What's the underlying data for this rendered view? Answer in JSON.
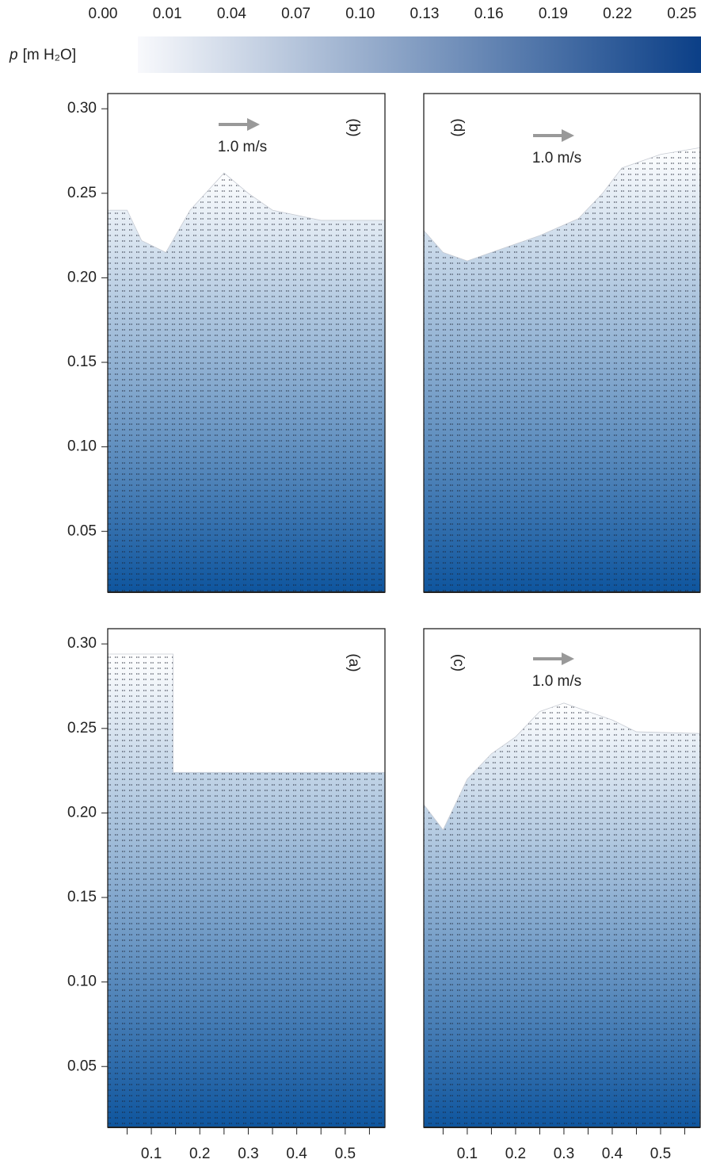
{
  "colorbar": {
    "symbol": "p",
    "unit": "[m H₂O]",
    "colors": [
      "#f8f9fc",
      "#0b3f87"
    ],
    "ticks": [
      {
        "value": 0,
        "label": "0.00"
      },
      0.01,
      0.04,
      0.07,
      {
        "value": 0.1,
        "label": "0.10"
      },
      0.13,
      0.16,
      0.19,
      0.22,
      0.25
    ]
  },
  "chart_data": [
    {
      "type": "field",
      "label": "(b)",
      "reference": "1.0 m/s",
      "colors": [
        "#ffffff",
        "#0e559e"
      ],
      "x": [
        0.01,
        0.05,
        0.08,
        0.13,
        0.18,
        0.25,
        0.3,
        0.35,
        0.45,
        0.582
      ],
      "y": [
        0.24,
        0.24,
        0.222,
        0.215,
        0.24,
        0.262,
        0.25,
        0.24,
        0.234,
        0.234
      ],
      "xlim": [
        0.01,
        0.582
      ],
      "ylim": [
        0.014,
        0.309
      ],
      "yticks": [
        0.05,
        {
          "value": 0.1,
          "label": "0.10"
        },
        0.15,
        {
          "value": 0.2,
          "label": "0.20"
        },
        0.25,
        {
          "value": 0.3,
          "label": "0.30"
        }
      ]
    },
    {
      "type": "field",
      "label": "(d)",
      "reference": "1.0 m/s",
      "colors": [
        "#ffffff",
        "#0e559e"
      ],
      "x": [
        0.01,
        0.05,
        0.1,
        0.15,
        0.2,
        0.25,
        0.33,
        0.38,
        0.42,
        0.5,
        0.582
      ],
      "y": [
        0.228,
        0.215,
        0.21,
        0.215,
        0.22,
        0.225,
        0.235,
        0.25,
        0.265,
        0.273,
        0.277
      ],
      "xlim": [
        0.01,
        0.582
      ],
      "ylim": [
        0.014,
        0.309
      ]
    },
    {
      "type": "field",
      "label": "(a)",
      "colors": [
        "#ffffff",
        "#0e559e"
      ],
      "x": [
        0.01,
        0.145,
        0.145,
        0.582
      ],
      "y": [
        0.294,
        0.294,
        0.224,
        0.224
      ],
      "xlim": [
        0.01,
        0.582
      ],
      "ylim": [
        0.014,
        0.309
      ],
      "yticks": [
        0.05,
        {
          "value": 0.1,
          "label": "0.10"
        },
        0.15,
        {
          "value": 0.2,
          "label": "0.20"
        },
        0.25,
        {
          "value": 0.3,
          "label": "0.30"
        }
      ],
      "xticks": [
        0.1,
        0.2,
        0.3,
        0.4,
        0.5
      ],
      "xminor_ticks": [
        0.05,
        0.15,
        0.25,
        0.35,
        0.45,
        0.55
      ]
    },
    {
      "type": "field",
      "label": "(c)",
      "reference": "1.0 m/s",
      "colors": [
        "#ffffff",
        "#0e559e"
      ],
      "x": [
        0.01,
        0.05,
        0.1,
        0.15,
        0.2,
        0.25,
        0.3,
        0.35,
        0.4,
        0.45,
        0.582
      ],
      "y": [
        0.205,
        0.19,
        0.22,
        0.235,
        0.245,
        0.26,
        0.265,
        0.26,
        0.255,
        0.248,
        0.247
      ],
      "xlim": [
        0.01,
        0.582
      ],
      "ylim": [
        0.014,
        0.309
      ],
      "xticks": [
        0.1,
        0.2,
        0.3,
        0.4,
        0.5
      ],
      "xminor_ticks": [
        0.05,
        0.15,
        0.25,
        0.35,
        0.45,
        0.55
      ]
    }
  ]
}
